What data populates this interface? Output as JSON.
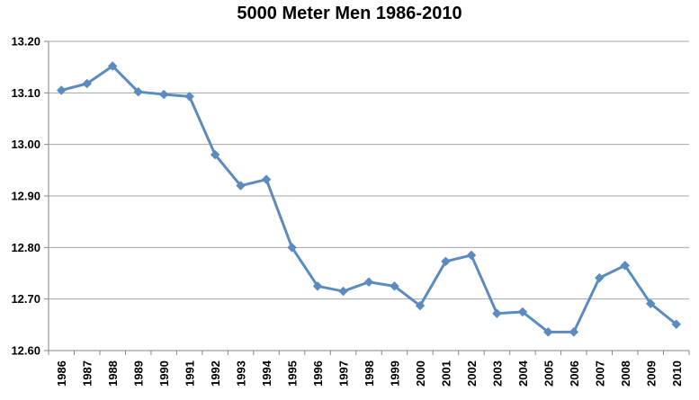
{
  "chart_data": {
    "type": "line",
    "title": "5000 Meter Men 1986-2010",
    "xlabel": "",
    "ylabel": "",
    "categories": [
      "1986",
      "1987",
      "1988",
      "1989",
      "1990",
      "1991",
      "1992",
      "1993",
      "1994",
      "1995",
      "1996",
      "1997",
      "1998",
      "1999",
      "2000",
      "2001",
      "2002",
      "2003",
      "2004",
      "2005",
      "2006",
      "2007",
      "2008",
      "2009",
      "2010"
    ],
    "values": [
      13.105,
      13.118,
      13.152,
      13.102,
      13.097,
      13.093,
      12.98,
      12.92,
      12.932,
      12.8,
      12.725,
      12.715,
      12.733,
      12.725,
      12.687,
      12.773,
      12.785,
      12.672,
      12.675,
      12.636,
      12.636,
      12.741,
      12.765,
      12.691,
      12.651
    ],
    "y_ticks": [
      "12.60",
      "12.70",
      "12.80",
      "12.90",
      "13.00",
      "13.10",
      "13.20"
    ],
    "ylim": [
      12.6,
      13.2
    ],
    "grid": true,
    "legend": "none",
    "colors": {
      "line": "#5b8bbf",
      "marker": "#5b8bbf",
      "grid": "#a6a6a6",
      "axis": "#868686"
    }
  }
}
